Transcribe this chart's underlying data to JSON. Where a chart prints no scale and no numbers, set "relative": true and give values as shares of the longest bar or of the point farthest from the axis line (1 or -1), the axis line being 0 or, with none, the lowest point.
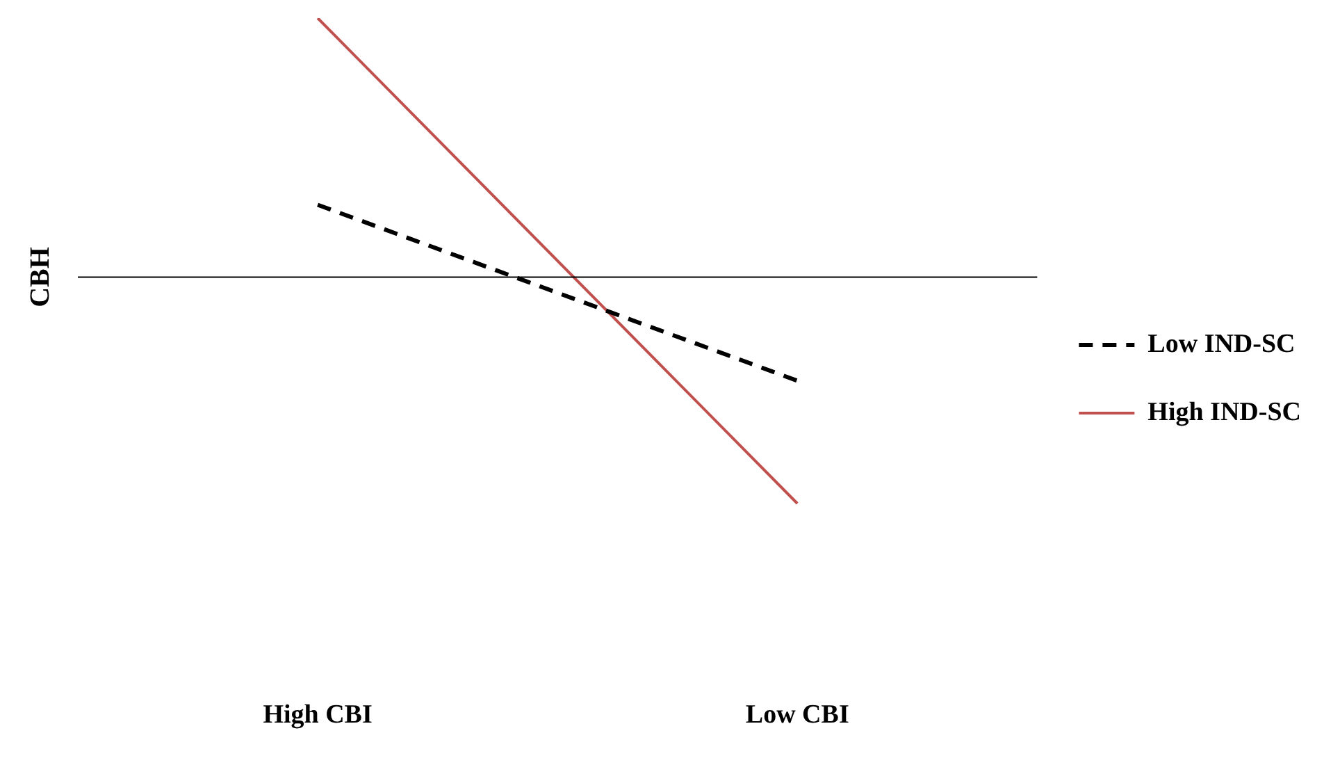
{
  "chart_data": {
    "type": "line",
    "relative": true,
    "ylabel": "CBH",
    "categories": [
      "High CBI",
      "Low CBI"
    ],
    "series": [
      {
        "name": "Low IND-SC",
        "color": "#000000",
        "line_style": "dashed",
        "values": [
          0.279,
          -0.4
        ]
      },
      {
        "name": "High IND-SC",
        "color": "#c0504d",
        "line_style": "solid",
        "values": [
          1,
          -0.874
        ]
      }
    ],
    "legend": "right",
    "grid": false,
    "marker": "none"
  }
}
